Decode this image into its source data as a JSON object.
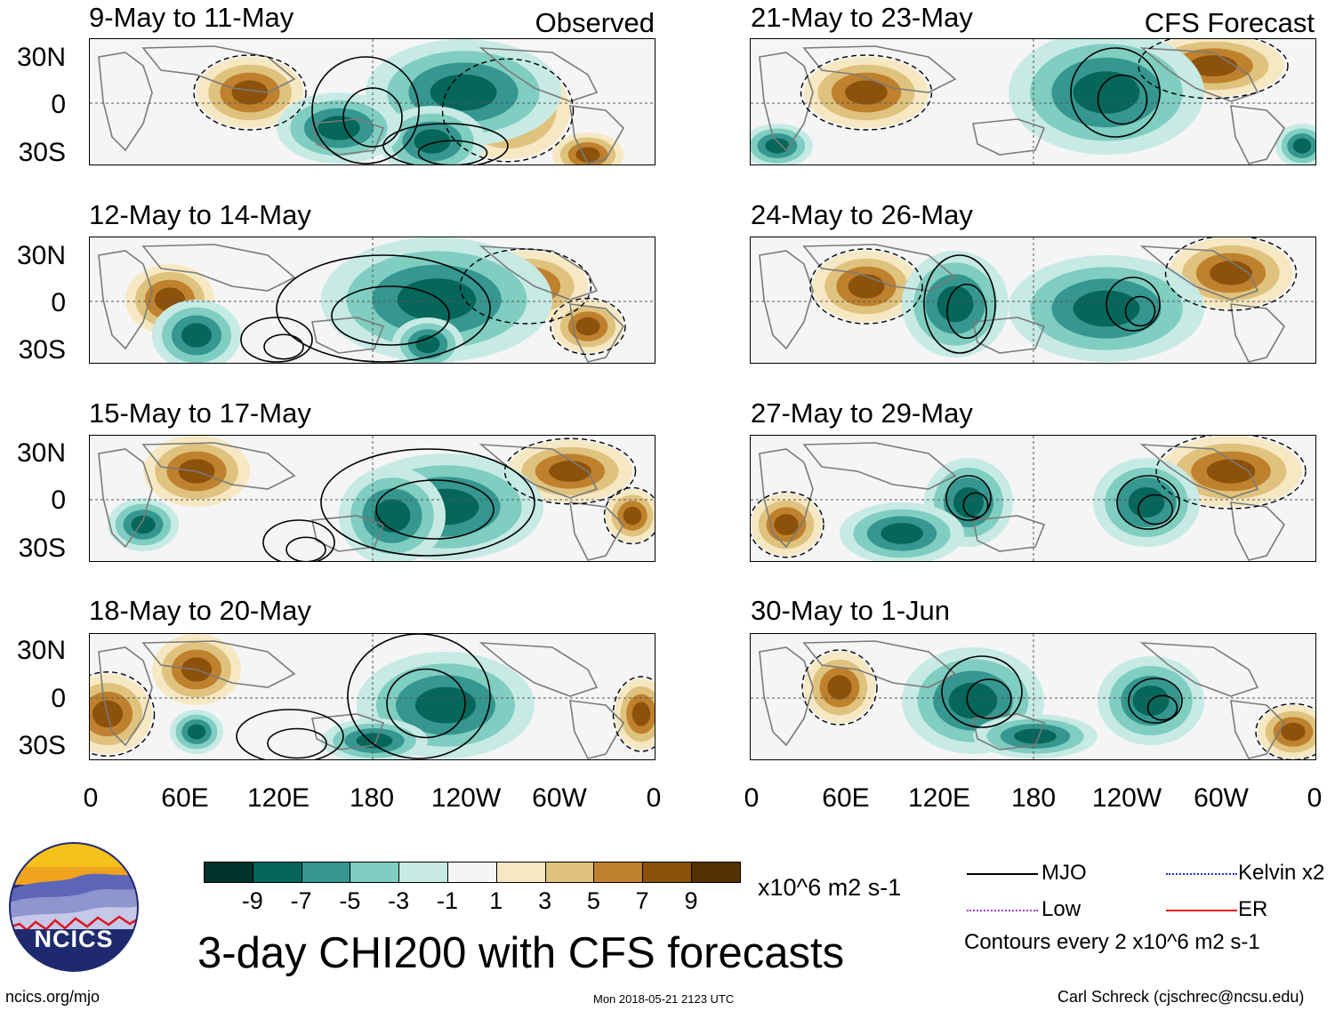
{
  "panels_left": [
    {
      "title": "9-May to 11-May",
      "tag": "Observed"
    },
    {
      "title": "12-May to 14-May",
      "tag": ""
    },
    {
      "title": "15-May to 17-May",
      "tag": ""
    },
    {
      "title": "18-May to 20-May",
      "tag": ""
    }
  ],
  "panels_right": [
    {
      "title": "21-May to 23-May",
      "tag": "CFS Forecast"
    },
    {
      "title": "24-May to 26-May",
      "tag": ""
    },
    {
      "title": "27-May to 29-May",
      "tag": ""
    },
    {
      "title": "30-May to 1-Jun",
      "tag": ""
    }
  ],
  "lat_labels": [
    "30N",
    "0",
    "30S"
  ],
  "lon_labels": [
    "0",
    "60E",
    "120E",
    "180",
    "120W",
    "60W",
    "0"
  ],
  "colorbar": {
    "labels": [
      "-9",
      "-7",
      "-5",
      "-3",
      "-1",
      "1",
      "3",
      "5",
      "7",
      "9"
    ],
    "colors": [
      "#01332b",
      "#05665a",
      "#35978f",
      "#80cdc1",
      "#c7eae5",
      "#f5f5f5",
      "#f6e8c3",
      "#dfc27d",
      "#bf812d",
      "#8c510a",
      "#543005"
    ],
    "units": "x10^6 m2 s-1"
  },
  "main_title": "3-day CHI200 with CFS forecasts",
  "legend": {
    "mjo": "MJO",
    "kelvin": "Kelvin x2",
    "low": "Low",
    "er": "ER",
    "contour_note": "Contours every 2 x10^6 m2 s-1",
    "colors": {
      "mjo": "#000000",
      "kelvin": "#1f2fd6",
      "low": "#9a3fe0",
      "er": "#e0141e"
    }
  },
  "logo_text": "NCICS",
  "footer": {
    "url": "ncics.org/mjo",
    "timestamp": "Mon 2018-05-21 2123 UTC",
    "credit": "Carl Schreck (cjschrec@ncsu.edu)"
  }
}
